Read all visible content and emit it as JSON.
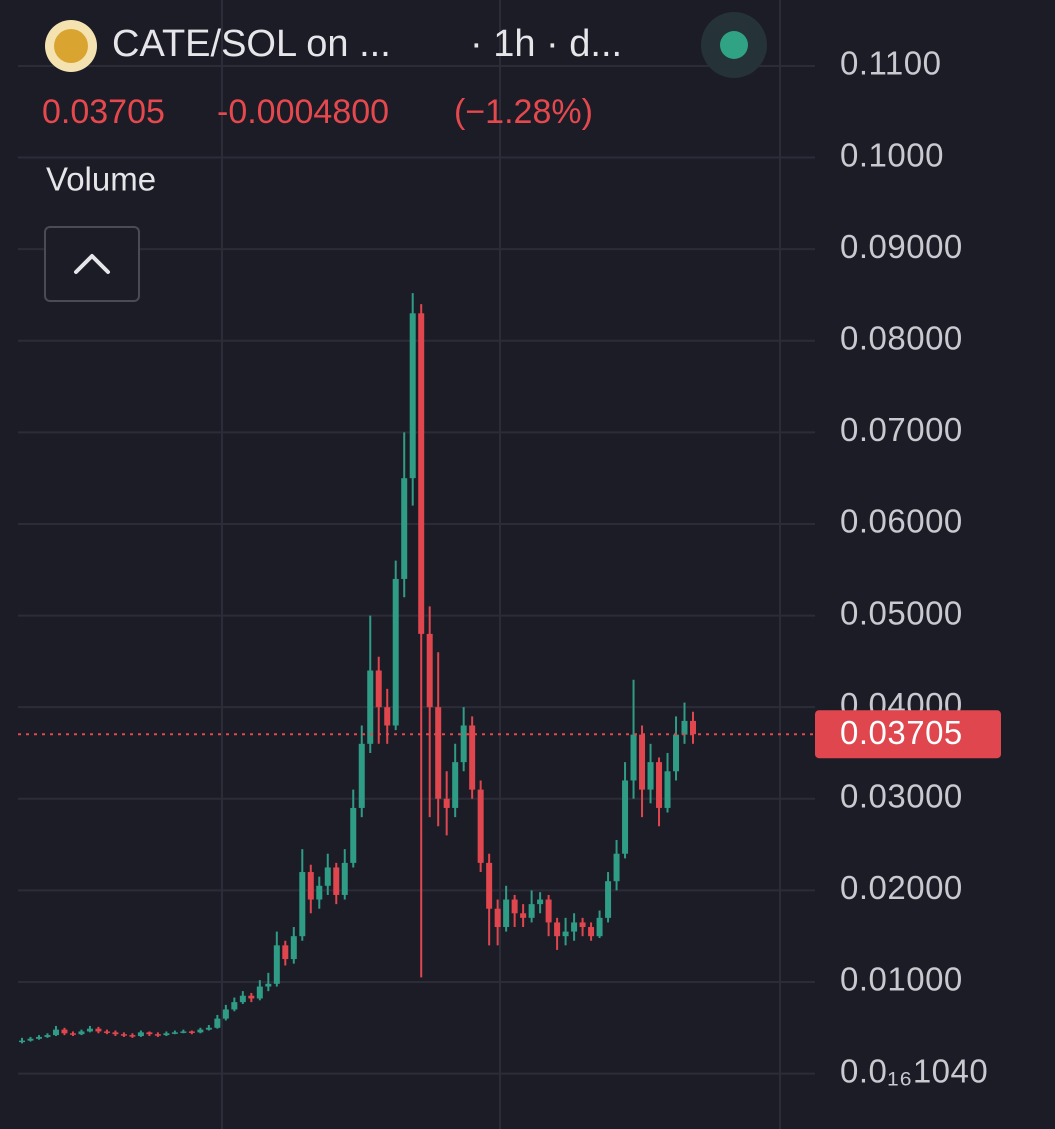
{
  "chart_data": {
    "type": "candlestick",
    "title": "CATE/SOL on ...",
    "interval": "· 1h · d...",
    "last_price": 0.03705,
    "change": "-0.0004800",
    "change_pct": "(−1.28%)",
    "indicator": "Volume",
    "up_color": "#2f9c86",
    "down_color": "#e0464e",
    "grid": true,
    "ylim": [
      -0.00605,
      0.1172
    ],
    "yticks": [
      {
        "value": 0.11,
        "label": "0.1100"
      },
      {
        "value": 0.1,
        "label": "0.1000"
      },
      {
        "value": 0.09,
        "label": "0.09000"
      },
      {
        "value": 0.08,
        "label": "0.08000"
      },
      {
        "value": 0.07,
        "label": "0.07000"
      },
      {
        "value": 0.06,
        "label": "0.06000"
      },
      {
        "value": 0.05,
        "label": "0.05000"
      },
      {
        "value": 0.04,
        "label": "0.04000"
      },
      {
        "value": 0.03,
        "label": "0.03000"
      },
      {
        "value": 0.02,
        "label": "0.02000"
      },
      {
        "value": 0.01,
        "label": "0.01000"
      },
      {
        "value": 1.04e-17,
        "label": "0.0₁₆1040"
      }
    ],
    "open": [
      0.0035,
      0.0036,
      0.0038,
      0.004,
      0.0042,
      0.0048,
      0.0044,
      0.0043,
      0.0046,
      0.0049,
      0.0046,
      0.0045,
      0.0043,
      0.0042,
      0.0041,
      0.0045,
      0.0043,
      0.0042,
      0.0044,
      0.0045,
      0.0046,
      0.0045,
      0.0048,
      0.005,
      0.006,
      0.007,
      0.0078,
      0.0085,
      0.0082,
      0.0095,
      0.0098,
      0.014,
      0.0125,
      0.015,
      0.022,
      0.019,
      0.0205,
      0.0225,
      0.0195,
      0.023,
      0.029,
      0.036,
      0.044,
      0.04,
      0.038,
      0.054,
      0.065,
      0.083,
      0.048,
      0.04,
      0.03,
      0.029,
      0.034,
      0.038,
      0.031,
      0.023,
      0.018,
      0.016,
      0.019,
      0.0175,
      0.017,
      0.0185,
      0.019,
      0.0165,
      0.015,
      0.0155,
      0.0165,
      0.016,
      0.015,
      0.017,
      0.021,
      0.024,
      0.032,
      0.037,
      0.031,
      0.034,
      0.029,
      0.033,
      0.037,
      0.0385
    ],
    "high": [
      0.0039,
      0.004,
      0.0042,
      0.0044,
      0.0052,
      0.005,
      0.0046,
      0.0048,
      0.0052,
      0.0051,
      0.0048,
      0.0047,
      0.0045,
      0.0044,
      0.0047,
      0.0046,
      0.0045,
      0.0046,
      0.0047,
      0.0048,
      0.0047,
      0.005,
      0.0053,
      0.0064,
      0.0075,
      0.0083,
      0.009,
      0.0088,
      0.0102,
      0.011,
      0.0155,
      0.0145,
      0.016,
      0.0245,
      0.0228,
      0.0215,
      0.024,
      0.023,
      0.0245,
      0.031,
      0.038,
      0.05,
      0.0455,
      0.042,
      0.056,
      0.07,
      0.0852,
      0.084,
      0.051,
      0.046,
      0.033,
      0.036,
      0.04,
      0.039,
      0.032,
      0.024,
      0.019,
      0.0205,
      0.0195,
      0.0185,
      0.02,
      0.0198,
      0.0195,
      0.017,
      0.017,
      0.0175,
      0.017,
      0.0165,
      0.0178,
      0.022,
      0.0255,
      0.034,
      0.043,
      0.038,
      0.036,
      0.0345,
      0.035,
      0.039,
      0.0405,
      0.0395
    ],
    "low": [
      0.0033,
      0.0035,
      0.0037,
      0.0039,
      0.0041,
      0.0042,
      0.0041,
      0.0042,
      0.0045,
      0.0044,
      0.0043,
      0.0041,
      0.004,
      0.0039,
      0.004,
      0.0041,
      0.004,
      0.0041,
      0.0043,
      0.0044,
      0.0043,
      0.0044,
      0.0047,
      0.0049,
      0.0058,
      0.0068,
      0.0076,
      0.0078,
      0.008,
      0.009,
      0.0095,
      0.0118,
      0.012,
      0.0145,
      0.0175,
      0.018,
      0.0195,
      0.0185,
      0.019,
      0.0225,
      0.028,
      0.035,
      0.036,
      0.036,
      0.0375,
      0.052,
      0.062,
      0.0105,
      0.028,
      0.027,
      0.026,
      0.028,
      0.033,
      0.03,
      0.022,
      0.014,
      0.014,
      0.0155,
      0.016,
      0.016,
      0.0165,
      0.0175,
      0.015,
      0.0135,
      0.014,
      0.0145,
      0.015,
      0.0145,
      0.0148,
      0.0165,
      0.02,
      0.0235,
      0.03,
      0.028,
      0.0295,
      0.027,
      0.0285,
      0.032,
      0.036,
      0.036
    ],
    "close": [
      0.0036,
      0.0038,
      0.004,
      0.0042,
      0.0048,
      0.0044,
      0.0043,
      0.0046,
      0.0049,
      0.0046,
      0.0045,
      0.0043,
      0.0042,
      0.0041,
      0.0045,
      0.0043,
      0.0042,
      0.0044,
      0.0045,
      0.0046,
      0.0045,
      0.0048,
      0.005,
      0.006,
      0.007,
      0.0078,
      0.0085,
      0.0082,
      0.0095,
      0.0098,
      0.014,
      0.0125,
      0.015,
      0.022,
      0.019,
      0.0205,
      0.0225,
      0.0195,
      0.023,
      0.029,
      0.036,
      0.044,
      0.04,
      0.038,
      0.054,
      0.065,
      0.083,
      0.048,
      0.04,
      0.03,
      0.029,
      0.034,
      0.038,
      0.031,
      0.023,
      0.018,
      0.016,
      0.019,
      0.0175,
      0.017,
      0.0185,
      0.019,
      0.0165,
      0.015,
      0.0155,
      0.0165,
      0.016,
      0.015,
      0.017,
      0.021,
      0.024,
      0.032,
      0.037,
      0.031,
      0.034,
      0.029,
      0.033,
      0.037,
      0.0385,
      0.03705
    ]
  }
}
